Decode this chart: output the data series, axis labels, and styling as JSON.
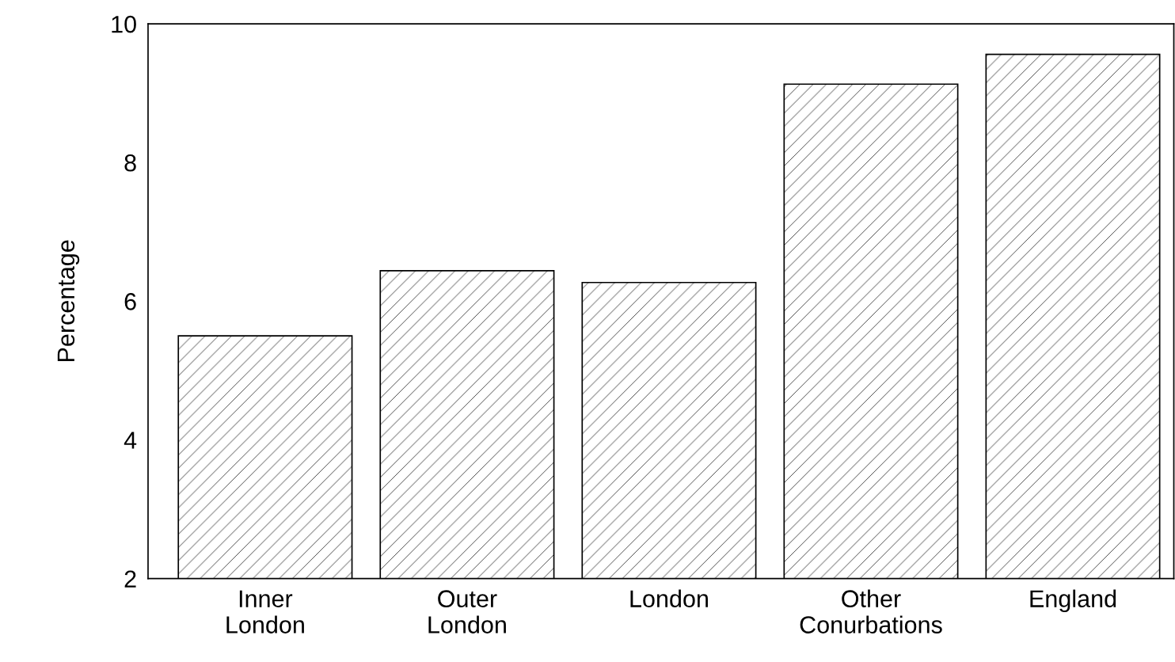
{
  "chart_data": {
    "type": "bar",
    "ylabel": "Percentage",
    "categories": [
      "Inner\nLondon",
      "Outer\nLondon",
      "London",
      "Other\nConurbations",
      "England"
    ],
    "values": [
      5.5,
      6.44,
      6.27,
      9.13,
      9.56
    ],
    "color": "#000000",
    "ylim": [
      2,
      10
    ],
    "yticks": [
      2,
      4,
      6,
      8,
      10
    ],
    "grid": false,
    "legend": false
  }
}
